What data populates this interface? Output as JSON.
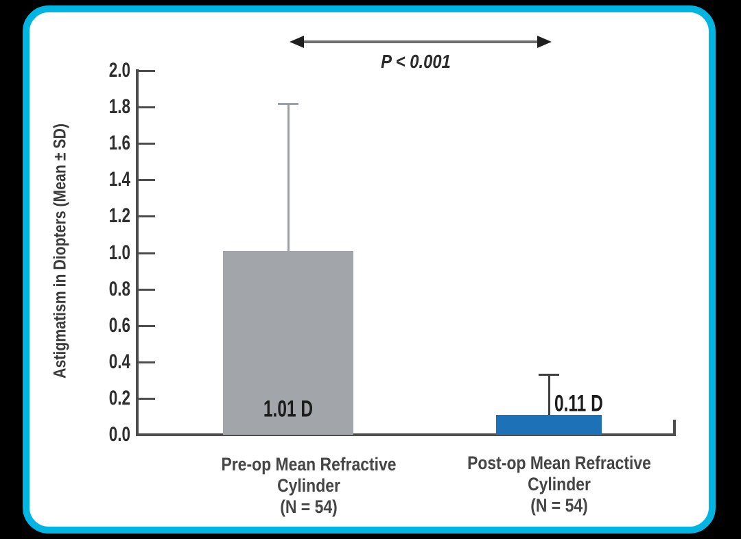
{
  "canvas": {
    "background": "#000000",
    "card_border_color": "#00b5e2",
    "card_background": "#ffffff",
    "axis_color": "#4d4d4d"
  },
  "chart_data": {
    "type": "bar",
    "title": "",
    "ylabel": "Astigmatism in Diopters (Mean ± SD)",
    "xlabel": "",
    "ylim": [
      0,
      2.0
    ],
    "yticks": [
      "0.0",
      "0.2",
      "0.4",
      "0.6",
      "0.8",
      "1.0",
      "1.2",
      "1.4",
      "1.6",
      "1.8",
      "2.0"
    ],
    "grid": false,
    "legend": false,
    "annotation": {
      "text": "P < 0.001"
    },
    "bars": [
      {
        "category_line1": "Pre-op Mean Refractive Cylinder",
        "category_line2": "(N = 54)",
        "value": 1.01,
        "value_label": "1.01 D",
        "error_bar_top": 1.82,
        "bar_color": "#a2a6aa",
        "error_color": "#9aa0a5",
        "value_label_position": "inside-bottom"
      },
      {
        "category_line1": "Post-op Mean Refractive Cylinder",
        "category_line2": "(N = 54)",
        "value": 0.11,
        "value_label": "0.11 D",
        "error_bar_top": 0.33,
        "bar_color": "#1c71b7",
        "error_color": "#3f3f3f",
        "value_label_position": "right-of-error-bar"
      }
    ]
  }
}
